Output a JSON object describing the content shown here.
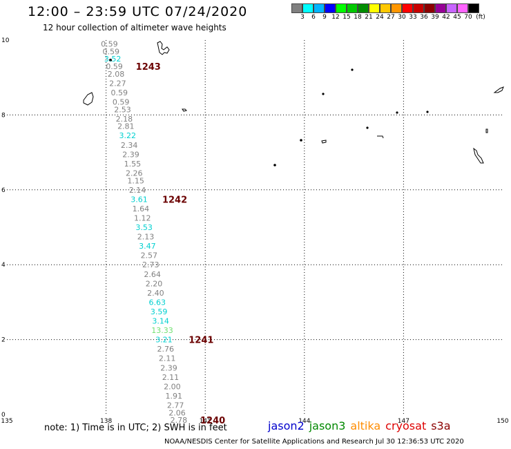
{
  "header": {
    "title": "12:00 – 23:59 UTC 07/24/2020",
    "subtitle": "12 hour collection of altimeter wave heights"
  },
  "legend": {
    "colors": [
      "#808080",
      "#00ffff",
      "#00b4ff",
      "#0000ff",
      "#00ff00",
      "#00c800",
      "#008c00",
      "#ffff00",
      "#ffc800",
      "#ff9600",
      "#ff0000",
      "#c80000",
      "#8c0000",
      "#960096",
      "#c864ff",
      "#ff64ff",
      "#000000"
    ],
    "labels": [
      "3",
      "6",
      "9",
      "12",
      "15",
      "18",
      "21",
      "24",
      "27",
      "30",
      "33",
      "36",
      "39",
      "42",
      "45",
      "70",
      "(ft)"
    ]
  },
  "axes": {
    "x_ticks": [
      "135",
      "138",
      "141",
      "144",
      "147",
      "150"
    ],
    "y_ticks": [
      "10",
      "8",
      "6",
      "4",
      "2",
      "0"
    ]
  },
  "track": [
    {
      "lat": 9.9,
      "lon": 138.1,
      "v": "0.59",
      "c": "#808080"
    },
    {
      "lat": 9.7,
      "lon": 138.15,
      "v": "0.59",
      "c": "#808080"
    },
    {
      "lat": 9.5,
      "lon": 138.2,
      "v": "3.52",
      "c": "#00d0d0"
    },
    {
      "lat": 9.3,
      "lon": 138.25,
      "v": "0.59",
      "c": "#808080"
    },
    {
      "lat": 9.1,
      "lon": 138.3,
      "v": "2.08",
      "c": "#808080"
    },
    {
      "lat": 8.85,
      "lon": 138.35,
      "v": "2.27",
      "c": "#808080"
    },
    {
      "lat": 8.6,
      "lon": 138.4,
      "v": "0.59",
      "c": "#808080"
    },
    {
      "lat": 8.35,
      "lon": 138.45,
      "v": "0.59",
      "c": "#808080"
    },
    {
      "lat": 8.15,
      "lon": 138.5,
      "v": "2.53",
      "c": "#808080"
    },
    {
      "lat": 7.9,
      "lon": 138.55,
      "v": "2.18",
      "c": "#808080"
    },
    {
      "lat": 7.7,
      "lon": 138.6,
      "v": "2.81",
      "c": "#808080"
    },
    {
      "lat": 7.45,
      "lon": 138.65,
      "v": "3.22",
      "c": "#00d0d0"
    },
    {
      "lat": 7.2,
      "lon": 138.7,
      "v": "2.34",
      "c": "#808080"
    },
    {
      "lat": 6.95,
      "lon": 138.75,
      "v": "2.39",
      "c": "#808080"
    },
    {
      "lat": 6.7,
      "lon": 138.8,
      "v": "1.55",
      "c": "#808080"
    },
    {
      "lat": 6.45,
      "lon": 138.85,
      "v": "2.26",
      "c": "#808080"
    },
    {
      "lat": 6.25,
      "lon": 138.9,
      "v": "1.15",
      "c": "#808080"
    },
    {
      "lat": 6.0,
      "lon": 138.95,
      "v": "2.14",
      "c": "#808080"
    },
    {
      "lat": 5.75,
      "lon": 139.0,
      "v": "3.61",
      "c": "#00d0d0"
    },
    {
      "lat": 5.5,
      "lon": 139.05,
      "v": "1.64",
      "c": "#808080"
    },
    {
      "lat": 5.25,
      "lon": 139.1,
      "v": "1.12",
      "c": "#808080"
    },
    {
      "lat": 5.0,
      "lon": 139.15,
      "v": "3.53",
      "c": "#00d0d0"
    },
    {
      "lat": 4.75,
      "lon": 139.2,
      "v": "2.13",
      "c": "#808080"
    },
    {
      "lat": 4.5,
      "lon": 139.25,
      "v": "3.47",
      "c": "#00d0d0"
    },
    {
      "lat": 4.25,
      "lon": 139.3,
      "v": "2.57",
      "c": "#808080"
    },
    {
      "lat": 4.0,
      "lon": 139.35,
      "v": "2.73",
      "c": "#808080"
    },
    {
      "lat": 3.75,
      "lon": 139.4,
      "v": "2.64",
      "c": "#808080"
    },
    {
      "lat": 3.5,
      "lon": 139.45,
      "v": "2.20",
      "c": "#808080"
    },
    {
      "lat": 3.25,
      "lon": 139.5,
      "v": "2.40",
      "c": "#808080"
    },
    {
      "lat": 3.0,
      "lon": 139.55,
      "v": "6.63",
      "c": "#00d0d0"
    },
    {
      "lat": 2.75,
      "lon": 139.6,
      "v": "3.59",
      "c": "#00d0d0"
    },
    {
      "lat": 2.5,
      "lon": 139.65,
      "v": "3.14",
      "c": "#00d0d0"
    },
    {
      "lat": 2.25,
      "lon": 139.7,
      "v": "13.33",
      "c": "#70e070"
    },
    {
      "lat": 2.0,
      "lon": 139.75,
      "v": "3.21",
      "c": "#00d0d0"
    },
    {
      "lat": 1.75,
      "lon": 139.8,
      "v": "2.76",
      "c": "#808080"
    },
    {
      "lat": 1.5,
      "lon": 139.85,
      "v": "2.11",
      "c": "#808080"
    },
    {
      "lat": 1.25,
      "lon": 139.9,
      "v": "2.39",
      "c": "#808080"
    },
    {
      "lat": 1.0,
      "lon": 139.95,
      "v": "2.11",
      "c": "#808080"
    },
    {
      "lat": 0.75,
      "lon": 140.0,
      "v": "2.00",
      "c": "#808080"
    },
    {
      "lat": 0.5,
      "lon": 140.05,
      "v": "1.91",
      "c": "#808080"
    },
    {
      "lat": 0.25,
      "lon": 140.1,
      "v": "2.77",
      "c": "#808080"
    },
    {
      "lat": 0.05,
      "lon": 140.15,
      "v": "2.06",
      "c": "#808080"
    },
    {
      "lat": -0.15,
      "lon": 140.2,
      "v": "2.78",
      "c": "#808080"
    }
  ],
  "passes": [
    {
      "lat": 9.3,
      "lon": 138.9,
      "label": "1243"
    },
    {
      "lat": 5.75,
      "lon": 139.7,
      "label": "1242"
    },
    {
      "lat": 2.0,
      "lon": 140.5,
      "label": "1241"
    },
    {
      "lat": -0.15,
      "lon": 140.85,
      "label": "1240"
    }
  ],
  "footer": {
    "note": "note: 1) Time is in UTC; 2) SWH is in feet",
    "satellites": [
      {
        "name": "jason2",
        "color": "#0000cc"
      },
      {
        "name": "jason3",
        "color": "#008800"
      },
      {
        "name": "altika",
        "color": "#ff8c00"
      },
      {
        "name": "cryosat",
        "color": "#dd0000"
      },
      {
        "name": "s3a",
        "color": "#8b0000"
      }
    ],
    "credit": "NOAA/NESDIS Center for Satellite Applications and Research    Jul 30 12:36:53 UTC 2020"
  }
}
